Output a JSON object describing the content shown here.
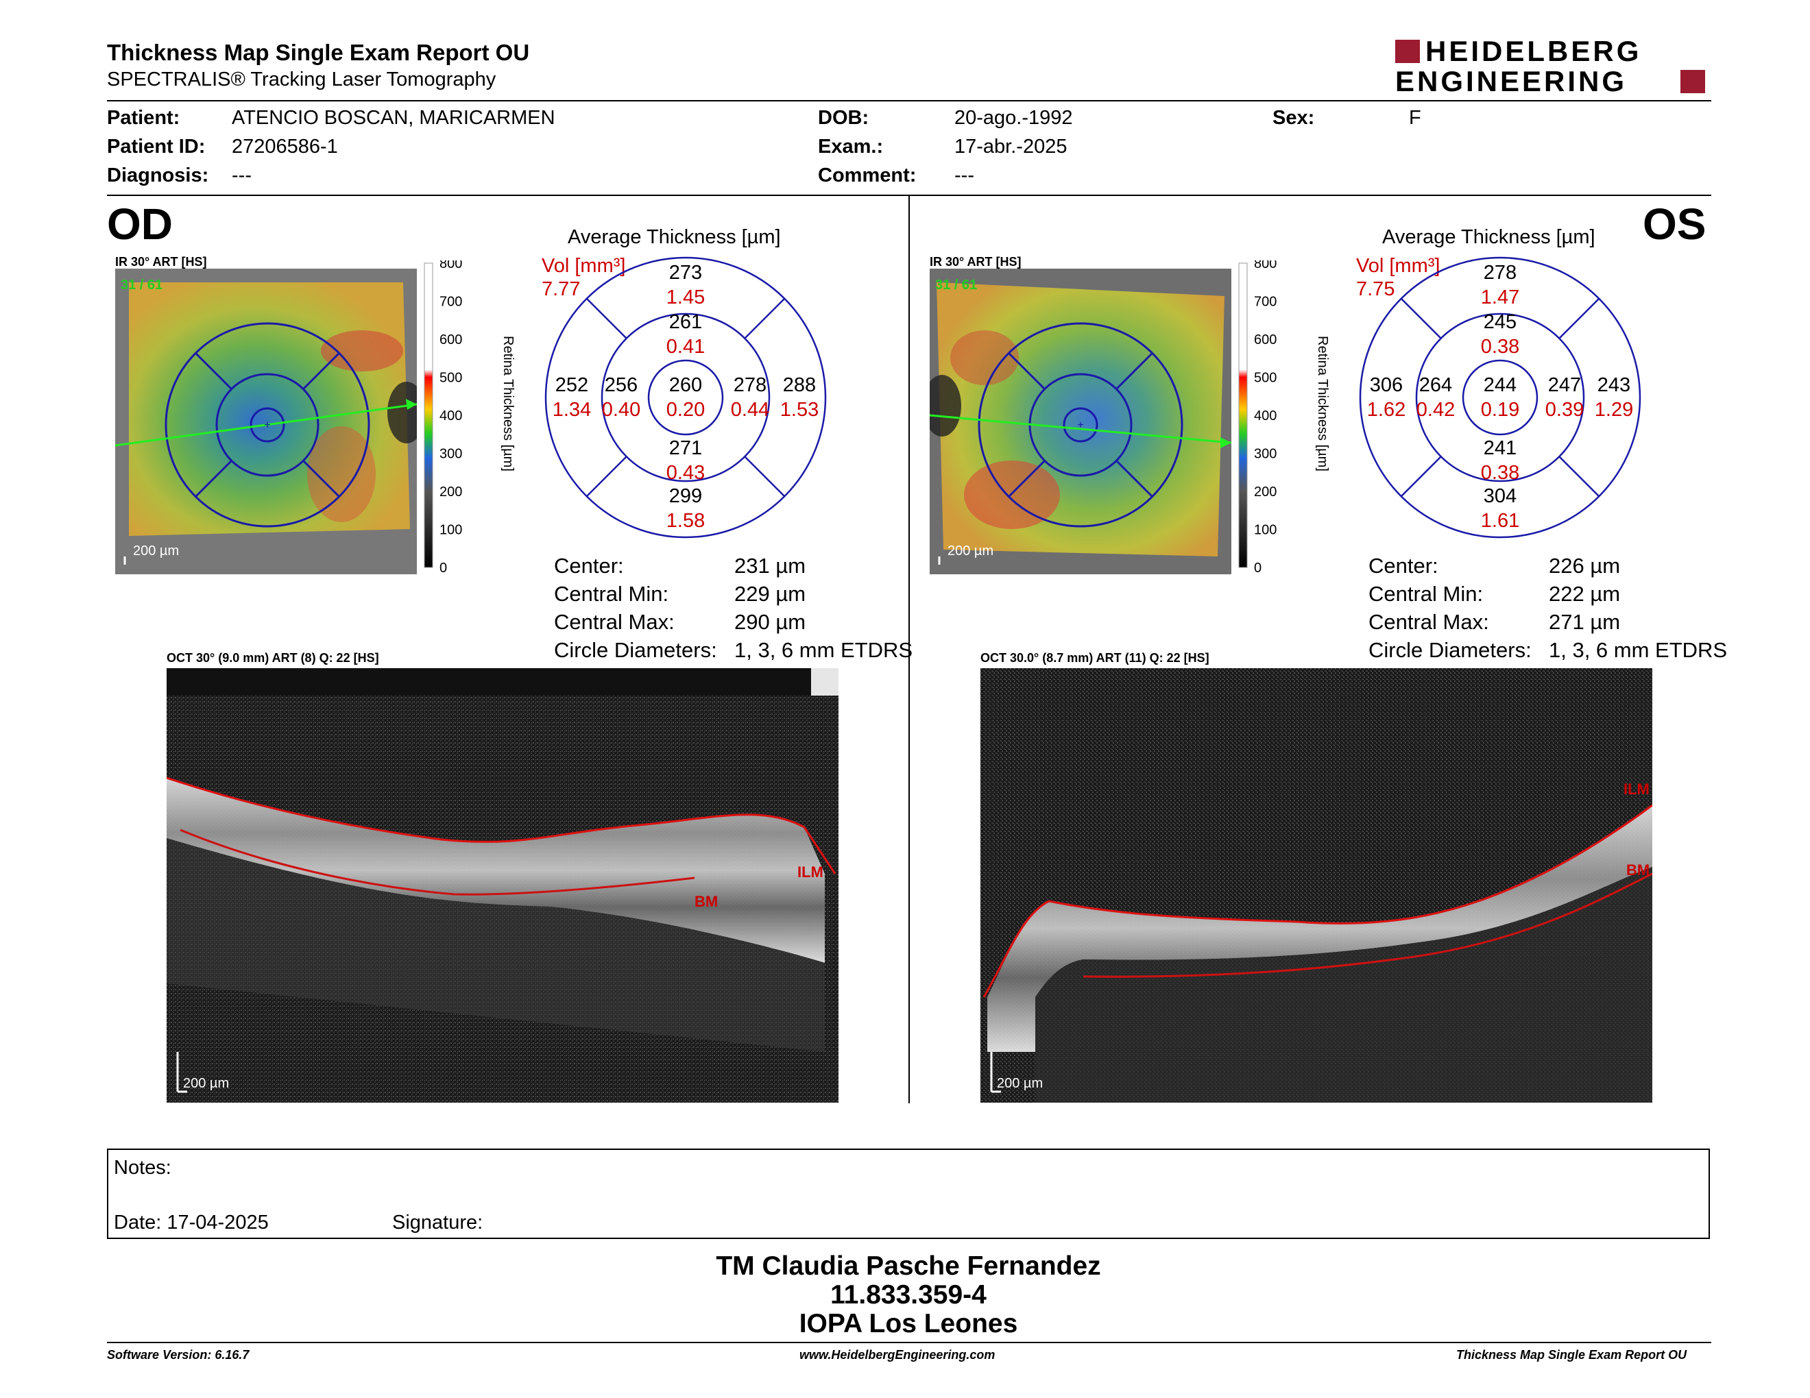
{
  "header": {
    "title": "Thickness Map Single Exam Report OU",
    "subtitle": "SPECTRALIS® Tracking Laser Tomography",
    "logo_line1": "HEIDELBERG",
    "logo_line2": "ENGINEERING"
  },
  "patient": {
    "patient_label": "Patient:",
    "patient_value": "ATENCIO BOSCAN, MARICARMEN",
    "id_label": "Patient ID:",
    "id_value": "27206586-1",
    "diagnosis_label": "Diagnosis:",
    "diagnosis_value": "---",
    "dob_label": "DOB:",
    "dob_value": "20-ago.-1992",
    "exam_label": "Exam.:",
    "exam_value": "17-abr.-2025",
    "comment_label": "Comment:",
    "comment_value": "---",
    "sex_label": "Sex:",
    "sex_value": "F"
  },
  "od": {
    "eye": "OD",
    "ir_label": "IR 30° ART [HS]",
    "ir_frames": "31 / 61",
    "scale_label": "200 µm",
    "colorbar_ticks": [
      "800",
      "700",
      "600",
      "500",
      "400",
      "300",
      "200",
      "100",
      "0"
    ],
    "colorbar_title": "Retina Thickness [µm]",
    "avg_title": "Average Thickness [µm]",
    "vol_label": "Vol [mm³]",
    "vol_value": "7.77",
    "sectors": {
      "center": [
        "260",
        "0.20"
      ],
      "inner_sup": [
        "261",
        "0.41"
      ],
      "inner_inf": [
        "271",
        "0.43"
      ],
      "inner_left": [
        "256",
        "0.40"
      ],
      "inner_right": [
        "278",
        "0.44"
      ],
      "outer_sup": [
        "273",
        "1.45"
      ],
      "outer_inf": [
        "299",
        "1.58"
      ],
      "outer_left": [
        "252",
        "1.34"
      ],
      "outer_right": [
        "288",
        "1.53"
      ]
    },
    "stats": [
      {
        "label": "Center:",
        "value": "231 µm"
      },
      {
        "label": "Central Min:",
        "value": "229 µm"
      },
      {
        "label": "Central Max:",
        "value": "290 µm"
      },
      {
        "label": "Circle Diameters:",
        "value": "1, 3, 6 mm ETDRS"
      }
    ],
    "oct_label": "OCT 30° (9.0 mm) ART (8) Q: 22 [HS]",
    "ilm": "ILM",
    "bm": "BM",
    "oct_scale": "200 µm"
  },
  "os": {
    "eye": "OS",
    "ir_label": "IR 30° ART [HS]",
    "ir_frames": "31 / 61",
    "scale_label": "200 µm",
    "colorbar_ticks": [
      "800",
      "700",
      "600",
      "500",
      "400",
      "300",
      "200",
      "100",
      "0"
    ],
    "colorbar_title": "Retina Thickness [µm]",
    "avg_title": "Average Thickness [µm]",
    "vol_label": "Vol [mm³]",
    "vol_value": "7.75",
    "sectors": {
      "center": [
        "244",
        "0.19"
      ],
      "inner_sup": [
        "245",
        "0.38"
      ],
      "inner_inf": [
        "241",
        "0.38"
      ],
      "inner_left": [
        "264",
        "0.42"
      ],
      "inner_right": [
        "247",
        "0.39"
      ],
      "outer_sup": [
        "278",
        "1.47"
      ],
      "outer_inf": [
        "304",
        "1.61"
      ],
      "outer_left": [
        "306",
        "1.62"
      ],
      "outer_right": [
        "243",
        "1.29"
      ]
    },
    "stats": [
      {
        "label": "Center:",
        "value": "226 µm"
      },
      {
        "label": "Central Min:",
        "value": "222 µm"
      },
      {
        "label": "Central Max:",
        "value": "271 µm"
      },
      {
        "label": "Circle Diameters:",
        "value": "1, 3, 6 mm ETDRS"
      }
    ],
    "oct_label": "OCT 30.0° (8.7 mm) ART (11) Q: 22 [HS]",
    "ilm": "ILM",
    "bm": "BM",
    "oct_scale": "200 µm"
  },
  "notes": {
    "notes_label": "Notes:",
    "date_label": "Date: 17-04-2025",
    "signature_label": "Signature:"
  },
  "footer": {
    "name": "TM Claudia Pasche Fernandez",
    "id": "11.833.359-4",
    "org": "IOPA Los Leones",
    "software": "Software Version: 6.16.7",
    "website": "www.HeidelbergEngineering.com",
    "report": "Thickness Map Single Exam Report OU"
  },
  "colors": {
    "accent_red": "#cc0000",
    "logo_red": "#9b1b30",
    "circle_blue": "#1a1aa8"
  }
}
